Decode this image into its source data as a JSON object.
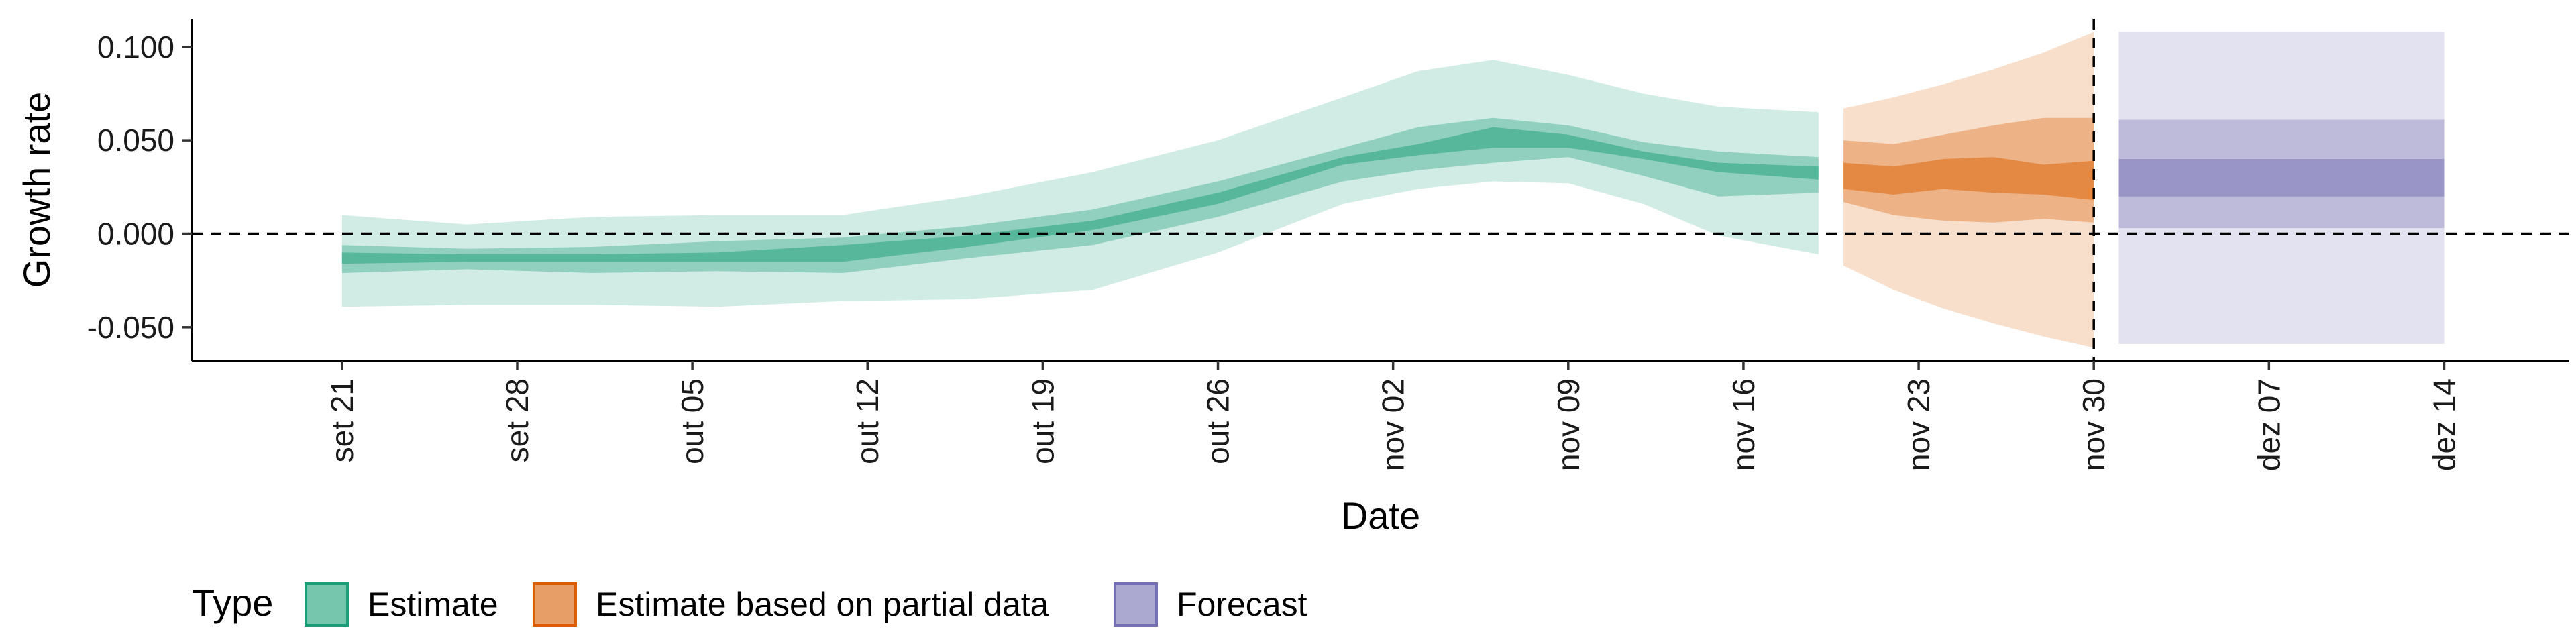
{
  "chart_data": {
    "type": "area",
    "xlabel": "Date",
    "ylabel": "Growth rate",
    "x_tick_labels": [
      "set 21",
      "set 28",
      "out 05",
      "out 12",
      "out 19",
      "out 26",
      "nov 02",
      "nov 09",
      "nov 16",
      "nov 23",
      "nov 30",
      "dez 07",
      "dez 14"
    ],
    "y_tick_labels": [
      "0.100",
      "0.050",
      "0.000",
      "-0.050"
    ],
    "y_ticks": [
      0.1,
      0.05,
      0.0,
      -0.05
    ],
    "ylim": [
      -0.068,
      0.115
    ],
    "xlim": [
      "2020-09-15",
      "2020-12-19"
    ],
    "reference_lines": {
      "horizontal_y": 0.0,
      "vertical_date": "2020-11-30"
    },
    "colors": {
      "Estimate": "#1b9e77",
      "Estimate based on partial data": "#d95f02",
      "Forecast": "#7570b3"
    },
    "legend": {
      "title": "Type",
      "position": "bottom",
      "items": [
        "Estimate",
        "Estimate based on partial data",
        "Forecast"
      ]
    },
    "series": [
      {
        "name": "Estimate",
        "x": [
          "2020-09-21",
          "2020-09-26",
          "2020-10-01",
          "2020-10-06",
          "2020-10-11",
          "2020-10-16",
          "2020-10-21",
          "2020-10-26",
          "2020-10-31",
          "2020-11-03",
          "2020-11-06",
          "2020-11-09",
          "2020-11-12",
          "2020-11-15",
          "2020-11-19"
        ],
        "upper90": [
          0.01,
          0.005,
          0.009,
          0.01,
          0.01,
          0.02,
          0.033,
          0.05,
          0.073,
          0.087,
          0.093,
          0.085,
          0.075,
          0.068,
          0.065
        ],
        "upper50": [
          -0.006,
          -0.008,
          -0.007,
          -0.004,
          -0.002,
          0.004,
          0.013,
          0.028,
          0.046,
          0.057,
          0.062,
          0.058,
          0.049,
          0.044,
          0.041
        ],
        "upper20": [
          -0.01,
          -0.011,
          -0.011,
          -0.01,
          -0.006,
          -0.001,
          0.007,
          0.022,
          0.041,
          0.048,
          0.057,
          0.053,
          0.044,
          0.038,
          0.036
        ],
        "lower20": [
          -0.016,
          -0.015,
          -0.015,
          -0.015,
          -0.015,
          -0.007,
          0.002,
          0.016,
          0.037,
          0.042,
          0.046,
          0.046,
          0.04,
          0.033,
          0.029
        ],
        "lower50": [
          -0.021,
          -0.019,
          -0.021,
          -0.02,
          -0.021,
          -0.013,
          -0.006,
          0.009,
          0.028,
          0.034,
          0.038,
          0.041,
          0.031,
          0.02,
          0.022
        ],
        "lower90": [
          -0.039,
          -0.038,
          -0.038,
          -0.039,
          -0.036,
          -0.035,
          -0.03,
          -0.01,
          0.016,
          0.024,
          0.028,
          0.027,
          0.016,
          -0.001,
          -0.011
        ]
      },
      {
        "name": "Estimate based on partial data",
        "x": [
          "2020-11-20",
          "2020-11-22",
          "2020-11-24",
          "2020-11-26",
          "2020-11-28",
          "2020-11-30"
        ],
        "upper90": [
          0.067,
          0.073,
          0.08,
          0.088,
          0.097,
          0.108
        ],
        "upper50": [
          0.05,
          0.048,
          0.053,
          0.058,
          0.062,
          0.062
        ],
        "upper20": [
          0.038,
          0.036,
          0.04,
          0.041,
          0.037,
          0.039
        ],
        "lower20": [
          0.024,
          0.021,
          0.024,
          0.022,
          0.021,
          0.018
        ],
        "lower50": [
          0.017,
          0.01,
          0.007,
          0.006,
          0.008,
          0.006
        ],
        "lower90": [
          -0.017,
          -0.03,
          -0.04,
          -0.048,
          -0.055,
          -0.061
        ]
      },
      {
        "name": "Forecast",
        "x": [
          "2020-12-01",
          "2020-12-14"
        ],
        "upper90": [
          0.108,
          0.108
        ],
        "upper50": [
          0.061,
          0.061
        ],
        "upper20": [
          0.04,
          0.04
        ],
        "lower20": [
          0.02,
          0.02
        ],
        "lower50": [
          0.003,
          0.003
        ],
        "lower90": [
          -0.059,
          -0.059
        ]
      }
    ]
  }
}
